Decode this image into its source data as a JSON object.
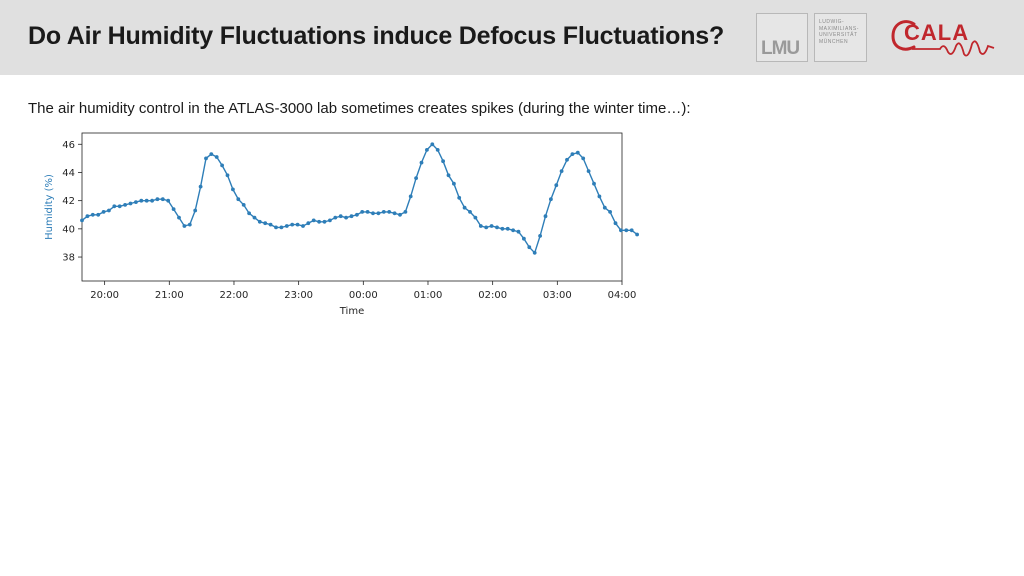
{
  "header": {
    "title": "Do Air Humidity Fluctuations induce Defocus Fluctuations?",
    "logo_lmu": "LMU",
    "logo_lmu_name": [
      "LUDWIG-",
      "MAXIMILIANS-",
      "UNIVERSITÄT",
      "MÜNCHEN"
    ],
    "logo_cala": "CALA"
  },
  "body_text": "The air humidity control in the ATLAS-3000 lab sometimes creates spikes (during the winter time…):",
  "colors": {
    "series": "#2e7eb8",
    "header_bg": "#e0e0e0",
    "cala_red": "#c0272d"
  },
  "chart_data": {
    "type": "line",
    "xlabel": "Time",
    "ylabel": "Humidity (%)",
    "x_tick_labels": [
      "20:00",
      "21:00",
      "22:00",
      "23:00",
      "00:00",
      "01:00",
      "02:00",
      "03:00",
      "04:00"
    ],
    "y_ticks": [
      38,
      40,
      42,
      44,
      46
    ],
    "xlim_hours": [
      -0.35,
      8.0
    ],
    "ylim": [
      36.3,
      46.8
    ],
    "grid": false,
    "marker": "dot",
    "series": [
      {
        "x_start": "19:39",
        "x_step_minutes": 5,
        "values": [
          40.6,
          40.9,
          41.0,
          41.0,
          41.2,
          41.3,
          41.6,
          41.6,
          41.7,
          41.8,
          41.9,
          42.0,
          42.0,
          42.0,
          42.1,
          42.1,
          42.0,
          41.4,
          40.8,
          40.2,
          40.3,
          41.3,
          43.0,
          45.0,
          45.3,
          45.1,
          44.5,
          43.8,
          42.8,
          42.1,
          41.7,
          41.1,
          40.8,
          40.5,
          40.4,
          40.3,
          40.1,
          40.1,
          40.2,
          40.3,
          40.3,
          40.2,
          40.4,
          40.6,
          40.5,
          40.5,
          40.6,
          40.8,
          40.9,
          40.8,
          40.9,
          41.0,
          41.2,
          41.2,
          41.1,
          41.1,
          41.2,
          41.2,
          41.1,
          41.0,
          41.2,
          42.3,
          43.6,
          44.7,
          45.6,
          46.0,
          45.6,
          44.8,
          43.8,
          43.2,
          42.2,
          41.5,
          41.2,
          40.8,
          40.2,
          40.1,
          40.2,
          40.1,
          40.0,
          40.0,
          39.9,
          39.8,
          39.3,
          38.7,
          38.3,
          39.5,
          40.9,
          42.1,
          43.1,
          44.1,
          44.9,
          45.3,
          45.4,
          45.0,
          44.1,
          43.2,
          42.3,
          41.5,
          41.2,
          40.4,
          39.9,
          39.9,
          39.9,
          39.6
        ]
      }
    ]
  }
}
